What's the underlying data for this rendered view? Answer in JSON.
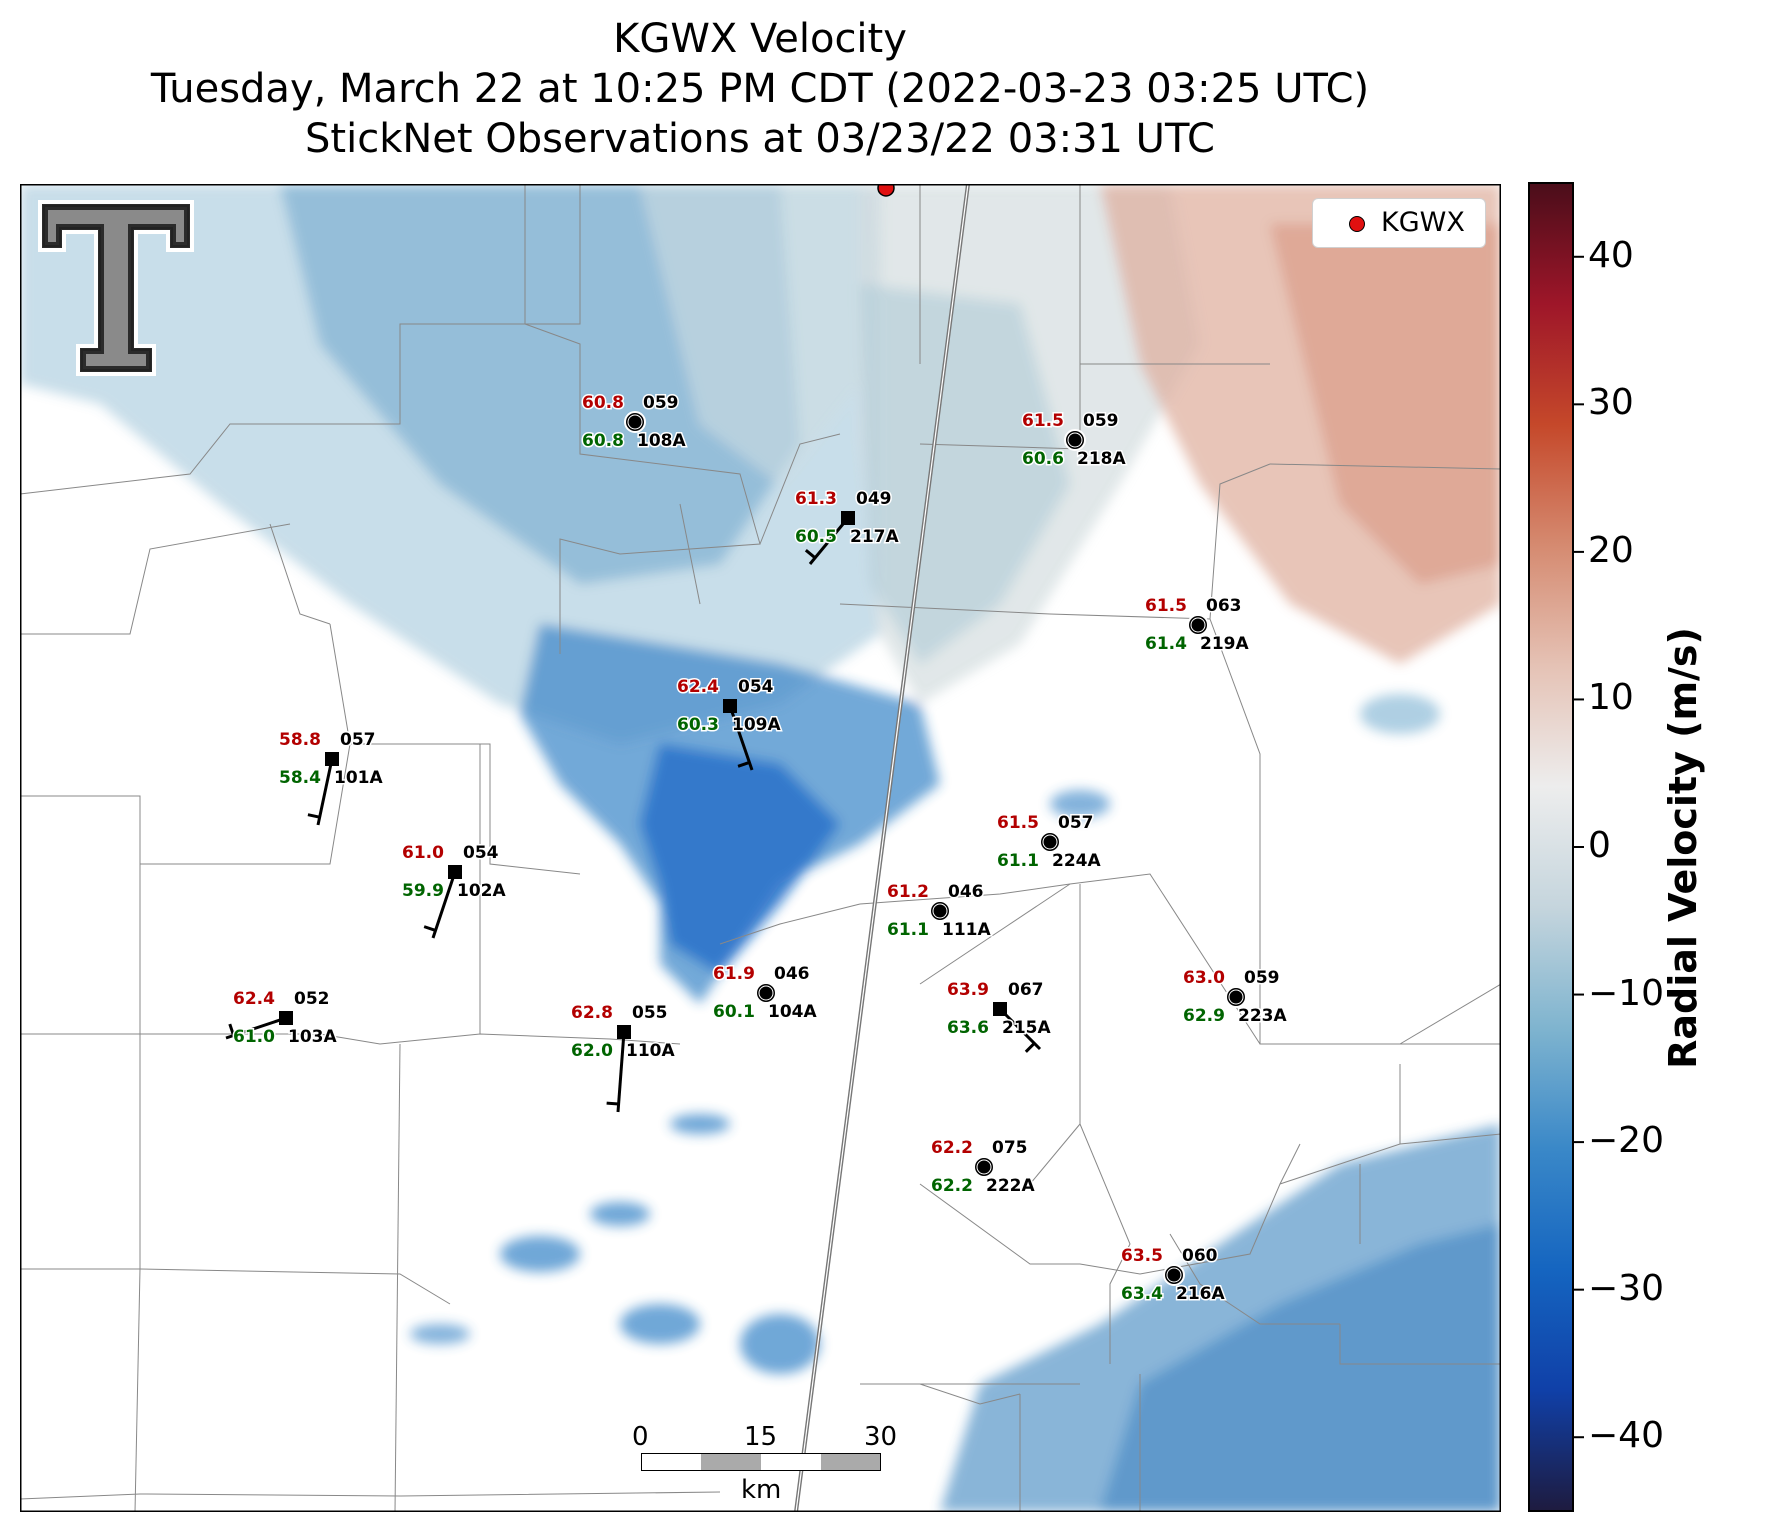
{
  "header": {
    "line1": "KGWX Velocity",
    "line2": "Tuesday, March 22 at 10:25 PM CDT (2022-03-23 03:25 UTC)",
    "line3": "StickNet Observations at 03/23/22 03:31 UTC"
  },
  "legend": {
    "label": "KGWX",
    "marker_color": "#e01010"
  },
  "colorbar": {
    "label": "Radial Velocity (m/s)",
    "ticks": [
      "40",
      "30",
      "20",
      "10",
      "0",
      "−10",
      "−20",
      "−30",
      "−40"
    ],
    "range": [
      -45,
      45
    ],
    "colors": [
      "#1e1b3f",
      "#1040a8",
      "#1565c0",
      "#3a88c8",
      "#7fb4cf",
      "#c5d5dd",
      "#ededed",
      "#e5c2b5",
      "#d58a70",
      "#c5482a",
      "#9e1629",
      "#4a0d1a"
    ]
  },
  "scale_bar": {
    "ticks": [
      "0",
      "15",
      "30"
    ],
    "unit": "km"
  },
  "logo": {
    "text": "T"
  },
  "stations": [
    {
      "id": "108A",
      "t": "60.8",
      "td": "60.8",
      "dir": "059",
      "marker": "circle"
    },
    {
      "id": "218A",
      "t": "61.5",
      "td": "60.6",
      "dir": "059",
      "marker": "circle"
    },
    {
      "id": "217A",
      "t": "61.3",
      "td": "60.5",
      "dir": "049",
      "marker": "square"
    },
    {
      "id": "219A",
      "t": "61.5",
      "td": "61.4",
      "dir": "063",
      "marker": "circle"
    },
    {
      "id": "101A",
      "t": "58.8",
      "td": "58.4",
      "dir": "057",
      "marker": "square"
    },
    {
      "id": "109A",
      "t": "62.4",
      "td": "60.3",
      "dir": "054",
      "marker": "square"
    },
    {
      "id": "224A",
      "t": "61.5",
      "td": "61.1",
      "dir": "057",
      "marker": "circle"
    },
    {
      "id": "102A",
      "t": "61.0",
      "td": "59.9",
      "dir": "054",
      "marker": "square"
    },
    {
      "id": "111A",
      "t": "61.2",
      "td": "61.1",
      "dir": "046",
      "marker": "circle"
    },
    {
      "id": "104A",
      "t": "61.9",
      "td": "60.1",
      "dir": "046",
      "marker": "circle"
    },
    {
      "id": "215A",
      "t": "63.9",
      "td": "63.6",
      "dir": "067",
      "marker": "square"
    },
    {
      "id": "223A",
      "t": "63.0",
      "td": "62.9",
      "dir": "059",
      "marker": "circle"
    },
    {
      "id": "103A",
      "t": "62.4",
      "td": "61.0",
      "dir": "052",
      "marker": "square"
    },
    {
      "id": "110A",
      "t": "62.8",
      "td": "62.0",
      "dir": "055",
      "marker": "square"
    },
    {
      "id": "222A",
      "t": "62.2",
      "td": "62.2",
      "dir": "075",
      "marker": "circle"
    },
    {
      "id": "216A",
      "t": "63.5",
      "td": "63.4",
      "dir": "060",
      "marker": "circle"
    }
  ]
}
